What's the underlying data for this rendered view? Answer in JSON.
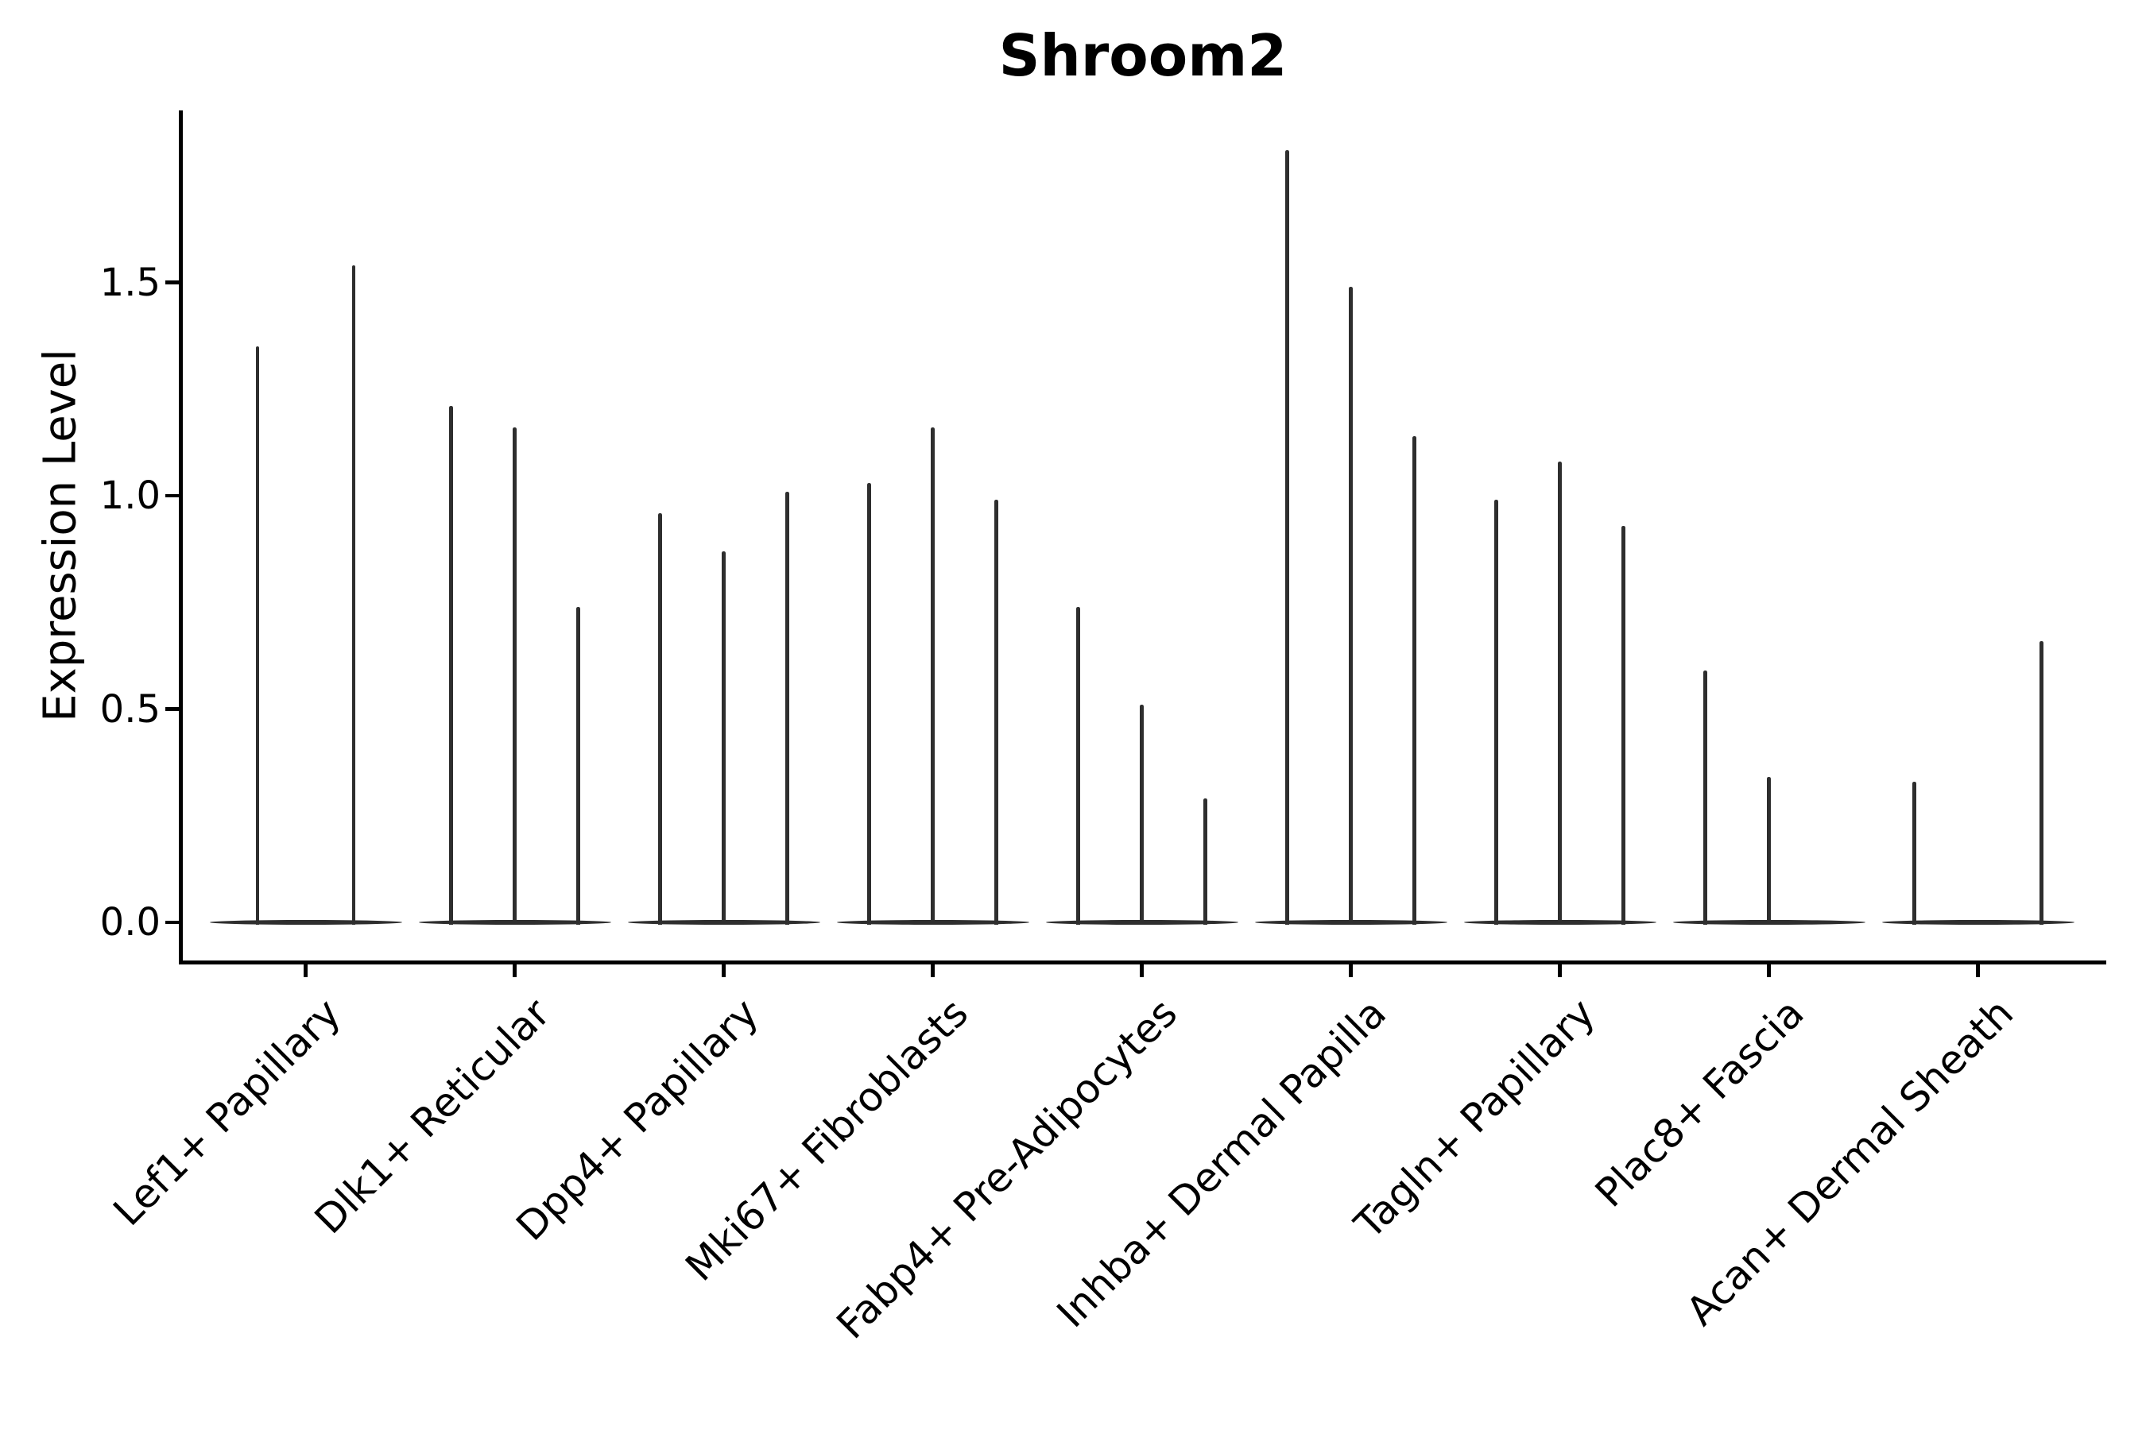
{
  "title": "Shroom2",
  "chart_data": {
    "type": "violin",
    "title": "Shroom2",
    "xlabel": "",
    "ylabel": "Expression Level",
    "ylim": [
      -0.09,
      1.9
    ],
    "yticks": [
      "0.0",
      "0.5",
      "1.0",
      "1.5"
    ],
    "ytick_values": [
      0.0,
      0.5,
      1.0,
      1.5
    ],
    "grid": false,
    "legend_position": "none",
    "violin_style": "extremely narrow spikes rising from flat zero baselines; 2-3 violins per category; 0 means a flat all-zero violin",
    "color": "#2e2e2e",
    "categories": [
      {
        "label": "Lef1+ Papillary",
        "violin_maxima": [
          1.35,
          1.54
        ]
      },
      {
        "label": "Dlk1+ Reticular",
        "violin_maxima": [
          1.21,
          1.16,
          0.74
        ]
      },
      {
        "label": "Dpp4+ Papillary",
        "violin_maxima": [
          0.96,
          0.87,
          1.01
        ]
      },
      {
        "label": "Mki67+ Fibroblasts",
        "violin_maxima": [
          1.03,
          1.16,
          0.99
        ]
      },
      {
        "label": "Fabp4+ Pre-Adipocytes",
        "violin_maxima": [
          0.74,
          0.51,
          0.29
        ]
      },
      {
        "label": "Inhba+ Dermal Papilla",
        "violin_maxima": [
          1.81,
          1.49,
          1.14
        ]
      },
      {
        "label": "Tagln+ Papillary",
        "violin_maxima": [
          0.99,
          1.08,
          0.93
        ]
      },
      {
        "label": "Plac8+ Fascia",
        "violin_maxima": [
          0.59,
          0.34,
          0
        ]
      },
      {
        "label": "Acan+ Dermal Sheath",
        "violin_maxima": [
          0.33,
          0,
          0.66
        ]
      }
    ]
  }
}
